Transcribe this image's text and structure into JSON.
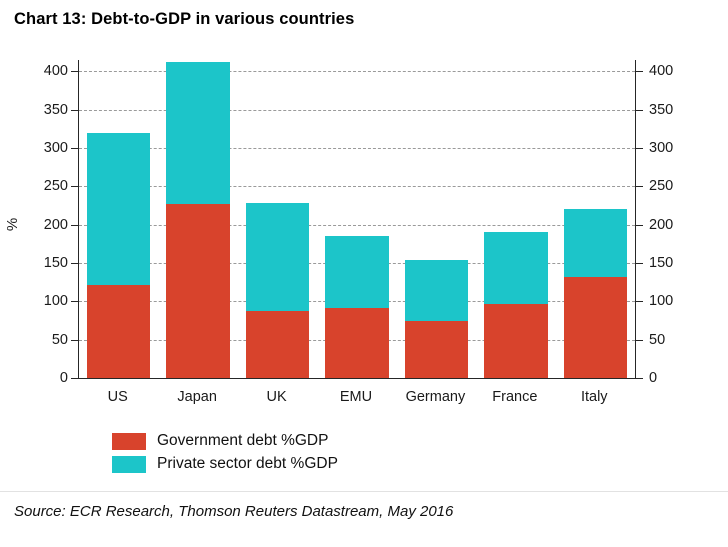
{
  "title": "Chart 13: Debt-to-GDP in various countries",
  "source": "Source: ECR Research, Thomson Reuters Datastream, May 2016",
  "chart_data": {
    "type": "bar",
    "stacked": true,
    "title": "Chart 13: Debt-to-GDP in various countries",
    "categories": [
      "US",
      "Japan",
      "UK",
      "EMU",
      "Germany",
      "France",
      "Italy"
    ],
    "series": [
      {
        "name": "Government debt %GDP",
        "color": "#d8432c",
        "values": [
          122,
          227,
          87,
          91,
          74,
          96,
          132
        ]
      },
      {
        "name": "Private sector debt %GDP",
        "color": "#1cc5c9",
        "values": [
          198,
          185,
          141,
          94,
          80,
          94,
          88
        ]
      }
    ],
    "totals": [
      320,
      412,
      228,
      185,
      154,
      190,
      220
    ],
    "xlabel": "",
    "ylabel": "%",
    "ylim": [
      0,
      415
    ],
    "ytick_step": 50,
    "ytick_max": 400,
    "grid": true,
    "grid_style": "dashed",
    "legend_position": "bottom-left"
  }
}
